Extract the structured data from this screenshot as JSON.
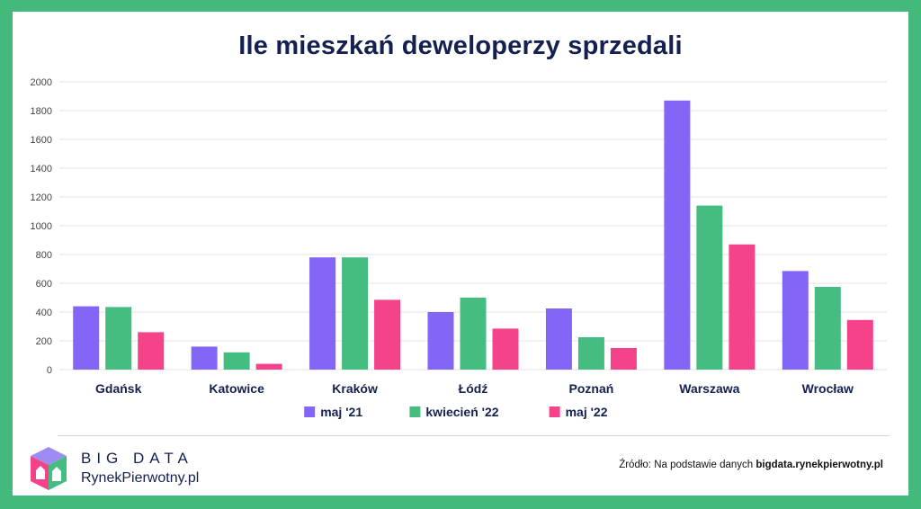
{
  "title": "Ile mieszkań deweloperzy sprzedali",
  "chart_data": {
    "type": "bar",
    "title": "Ile mieszkań deweloperzy sprzedali",
    "categories": [
      "Gdańsk",
      "Katowice",
      "Kraków",
      "Łódź",
      "Poznań",
      "Warszawa",
      "Wrocław"
    ],
    "series": [
      {
        "name": "maj '21",
        "color": "#8366f6",
        "values": [
          440,
          160,
          780,
          400,
          425,
          1870,
          685
        ]
      },
      {
        "name": "kwiecień '22",
        "color": "#45bd80",
        "values": [
          435,
          120,
          780,
          500,
          225,
          1140,
          575
        ]
      },
      {
        "name": "maj '22",
        "color": "#f5438a",
        "values": [
          260,
          40,
          485,
          285,
          150,
          870,
          345
        ]
      }
    ],
    "ylim": [
      0,
      2000
    ],
    "yticks": [
      0,
      200,
      400,
      600,
      800,
      1000,
      1200,
      1400,
      1600,
      1800,
      2000
    ],
    "grid": true,
    "legend_position": "bottom"
  },
  "branding": {
    "line1": "BIG DATA",
    "line2": "RynekPierwotny.pl"
  },
  "source": {
    "prefix": "Źródło: Na podstawie danych ",
    "link": "bigdata.rynekpierwotny.pl"
  }
}
